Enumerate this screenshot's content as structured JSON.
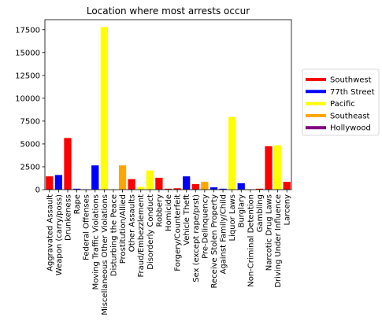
{
  "chart_data": {
    "type": "bar",
    "title": "Location where most arrests occur",
    "xlabel": "",
    "ylabel": "",
    "ylim": [
      0,
      18600
    ],
    "yticks": [
      0,
      2500,
      5000,
      7500,
      10000,
      12500,
      15000,
      17500
    ],
    "grid": false,
    "legend_position": "right",
    "legend": [
      {
        "name": "Southwest",
        "color": "#ff0000"
      },
      {
        "name": "77th Street",
        "color": "#0000ff"
      },
      {
        "name": "Pacific",
        "color": "#ffff00"
      },
      {
        "name": "Southeast",
        "color": "#ffa500"
      },
      {
        "name": "Hollywood",
        "color": "#800080"
      }
    ],
    "categories": [
      "Aggravated Assault",
      "Weapon (carry/poss)",
      "Drunkeness",
      "Rape",
      "Federal Offenses",
      "Moving Traffic Violations",
      "Miscellaneous Other Violations",
      "Disturbing the Peace",
      "Prostitution/Allied",
      "Other Assaults",
      "Fraud/Embezzlement",
      "Disorderly Conduct",
      "Robbery",
      "Homicide",
      "Forgery/Counterfeit",
      "Vehicle Theft",
      "Sex (except rape/prst)",
      "Pre-Delinquency",
      "Receive Stolen Property",
      "Against Family/Child",
      "Liquor Laws",
      "Burglary",
      "Non-Criminal Detention",
      "Gambling",
      "Narcotic Drug Laws",
      "Driving Under Influence",
      "Larceny"
    ],
    "values": [
      1450,
      1600,
      5650,
      100,
      30,
      2650,
      17800,
      30,
      2650,
      1150,
      300,
      2100,
      1300,
      100,
      150,
      1450,
      600,
      850,
      250,
      100,
      7950,
      700,
      30,
      100,
      4750,
      4850,
      850
    ],
    "bar_colors": [
      "#ff0000",
      "#0000ff",
      "#ff0000",
      "#0000ff",
      "#0000ff",
      "#0000ff",
      "#ffff00",
      "#ffa500",
      "#ffa500",
      "#ff0000",
      "#ffff00",
      "#ffff00",
      "#ff0000",
      "#ff0000",
      "#ff0000",
      "#0000ff",
      "#ff0000",
      "#ffa500",
      "#0000ff",
      "#0000ff",
      "#ffff00",
      "#0000ff",
      "#ff0000",
      "#ff0000",
      "#ff0000",
      "#ffff00",
      "#ff0000"
    ]
  }
}
